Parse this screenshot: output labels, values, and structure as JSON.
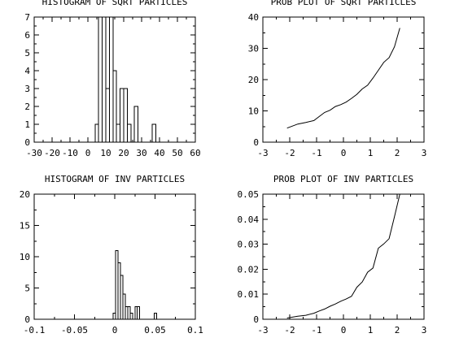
{
  "chart_data": [
    {
      "type": "bar",
      "title": "HISTOGRAM OF SQRT PARTICLES",
      "xlim": [
        -30,
        60
      ],
      "ylim": [
        0,
        7
      ],
      "xticks": [
        "-30",
        "-20",
        "-10",
        "0",
        "10",
        "20",
        "30",
        "40",
        "50",
        "60"
      ],
      "yticks": [
        "0",
        "1",
        "2",
        "3",
        "4",
        "5",
        "6",
        "7"
      ],
      "bin_width": 2,
      "bins": [
        {
          "x": 5,
          "count": 1
        },
        {
          "x": 7,
          "count": 7
        },
        {
          "x": 9,
          "count": 7
        },
        {
          "x": 11,
          "count": 3
        },
        {
          "x": 13,
          "count": 7
        },
        {
          "x": 15,
          "count": 4
        },
        {
          "x": 17,
          "count": 1
        },
        {
          "x": 19,
          "count": 3
        },
        {
          "x": 21,
          "count": 3
        },
        {
          "x": 23,
          "count": 1
        },
        {
          "x": 27,
          "count": 2
        },
        {
          "x": 37,
          "count": 1
        }
      ]
    },
    {
      "type": "line",
      "title": "PROB PLOT OF SQRT PARTICLES",
      "xlim": [
        -3,
        3
      ],
      "ylim": [
        0,
        40
      ],
      "xticks": [
        "-3",
        "-2",
        "-1",
        "0",
        "1",
        "2",
        "3"
      ],
      "yticks": [
        "0",
        "10",
        "20",
        "30",
        "40"
      ],
      "x": [
        -2.1,
        -1.7,
        -1.4,
        -1.1,
        -0.9,
        -0.7,
        -0.5,
        -0.3,
        -0.1,
        0.1,
        0.3,
        0.5,
        0.7,
        0.9,
        1.1,
        1.3,
        1.5,
        1.7,
        1.9,
        2.1
      ],
      "y": [
        4.5,
        5.8,
        6.3,
        6.9,
        8.2,
        9.5,
        10.2,
        11.4,
        12.0,
        12.8,
        14.0,
        15.3,
        17.0,
        18.2,
        20.5,
        23.0,
        25.5,
        27.0,
        30.5,
        36.5
      ]
    },
    {
      "type": "bar",
      "title": "HISTOGRAM OF INV PARTICLES",
      "xlim": [
        -0.1,
        0.1
      ],
      "ylim": [
        0,
        20
      ],
      "xticks": [
        "-0.1",
        "-0.05",
        "0",
        "0.05",
        "0.1"
      ],
      "yticks": [
        "0",
        "5",
        "10",
        "15",
        "20"
      ],
      "bin_width": 0.003,
      "bins": [
        {
          "x": -0.0005,
          "count": 1
        },
        {
          "x": 0.0025,
          "count": 11
        },
        {
          "x": 0.0055,
          "count": 9
        },
        {
          "x": 0.0085,
          "count": 7
        },
        {
          "x": 0.0115,
          "count": 4
        },
        {
          "x": 0.0145,
          "count": 2
        },
        {
          "x": 0.0175,
          "count": 2
        },
        {
          "x": 0.0205,
          "count": 1
        },
        {
          "x": 0.0265,
          "count": 2
        },
        {
          "x": 0.0295,
          "count": 2
        },
        {
          "x": 0.0505,
          "count": 1
        }
      ]
    },
    {
      "type": "line",
      "title": "PROB PLOT OF INV PARTICLES",
      "xlim": [
        -3,
        3
      ],
      "ylim": [
        0,
        0.05
      ],
      "xticks": [
        "-3",
        "-2",
        "-1",
        "0",
        "1",
        "2",
        "3"
      ],
      "yticks": [
        "0",
        "0.01",
        "0.02",
        "0.03",
        "0.04",
        "0.05"
      ],
      "x": [
        -2.1,
        -1.7,
        -1.4,
        -1.1,
        -0.9,
        -0.7,
        -0.5,
        -0.3,
        -0.1,
        0.1,
        0.3,
        0.5,
        0.7,
        0.9,
        1.1,
        1.3,
        1.5,
        1.7,
        1.9,
        2.1
      ],
      "y": [
        0.0005,
        0.0012,
        0.0016,
        0.0024,
        0.0033,
        0.0041,
        0.0052,
        0.0061,
        0.0072,
        0.0081,
        0.0092,
        0.0128,
        0.0149,
        0.0188,
        0.0205,
        0.0284,
        0.0301,
        0.0322,
        0.041,
        0.05
      ]
    }
  ]
}
